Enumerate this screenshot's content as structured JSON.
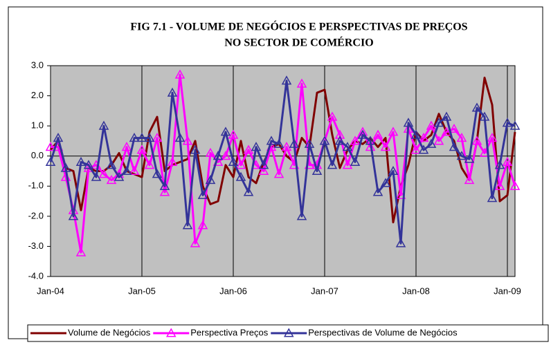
{
  "chart_data": {
    "type": "line",
    "title": [
      "FIG 7.1 - VOLUME DE NEGÓCIOS E PERSPECTIVAS DE PREÇOS",
      "NO SECTOR DE COMÉRCIO"
    ],
    "categories": [
      "Jan-04",
      null,
      null,
      null,
      null,
      null,
      null,
      null,
      null,
      null,
      null,
      null,
      "Jan-05",
      null,
      null,
      null,
      null,
      null,
      null,
      null,
      null,
      null,
      null,
      null,
      "Jan-06",
      null,
      null,
      null,
      null,
      null,
      null,
      null,
      null,
      null,
      null,
      null,
      "Jan-07",
      null,
      null,
      null,
      null,
      null,
      null,
      null,
      null,
      null,
      null,
      null,
      "Jan-08",
      null,
      null,
      null,
      null,
      null,
      null,
      null,
      null,
      null,
      null,
      null,
      "Jan-09",
      null
    ],
    "series": [
      {
        "name": "Volume de Negócios",
        "color": "#800000",
        "marker": "none",
        "values": [
          0.2,
          0.5,
          -0.4,
          -0.5,
          -1.8,
          -0.4,
          -0.5,
          -0.5,
          -0.3,
          0.1,
          -0.5,
          -0.6,
          -0.7,
          0.8,
          1.3,
          -0.5,
          -0.3,
          -0.2,
          -0.1,
          0.5,
          -1.0,
          -1.6,
          -1.5,
          -0.3,
          -0.7,
          0.5,
          -0.7,
          -0.9,
          -0.2,
          0.3,
          0.4,
          0.0,
          -0.2,
          0.6,
          0.3,
          2.1,
          2.2,
          0.7,
          -0.4,
          0.2,
          0.5,
          0.4,
          0.6,
          0.3,
          0.6,
          -2.2,
          -1.0,
          -0.3,
          0.8,
          0.5,
          0.7,
          1.4,
          0.8,
          0.5,
          -0.4,
          -0.8,
          0.5,
          2.6,
          1.7,
          -1.5,
          -1.3,
          0.8
        ]
      },
      {
        "name": "Perspectiva Preços",
        "color": "#ff00ff",
        "marker": "triangle",
        "values": [
          0.3,
          0.3,
          -0.7,
          -1.8,
          -3.2,
          -0.4,
          -0.3,
          -0.6,
          -0.8,
          -0.6,
          0.3,
          -0.5,
          0.2,
          -0.3,
          0.6,
          -1.2,
          -0.2,
          2.7,
          0.5,
          -2.9,
          -2.3,
          0.1,
          -0.2,
          0.0,
          0.7,
          -0.3,
          0.2,
          -0.3,
          -0.5,
          0.3,
          -0.6,
          0.3,
          -0.3,
          2.4,
          -0.3,
          -0.3,
          0.5,
          1.3,
          0.7,
          -0.3,
          0.5,
          0.8,
          0.3,
          0.7,
          0.3,
          0.8,
          -1.3,
          0.9,
          0.2,
          0.6,
          1.0,
          0.5,
          0.8,
          0.9,
          0.6,
          -0.8,
          0.5,
          0.1,
          0.6,
          -1.0,
          -0.2,
          -1.0
        ]
      },
      {
        "name": "Perspectivas de Volume de Negócios",
        "color": "#333399",
        "marker": "triangle",
        "values": [
          -0.2,
          0.6,
          -0.4,
          -2.0,
          -0.2,
          -0.3,
          -0.7,
          1.0,
          -0.3,
          -0.7,
          -0.5,
          0.6,
          0.6,
          0.6,
          -0.6,
          -1.0,
          2.1,
          0.6,
          -2.3,
          0.2,
          -1.3,
          -0.8,
          0.0,
          0.8,
          -0.2,
          -0.7,
          -1.2,
          0.3,
          -0.3,
          0.5,
          0.4,
          2.5,
          0.4,
          -2.0,
          0.4,
          -0.5,
          0.5,
          -0.3,
          0.5,
          0.3,
          -0.2,
          0.7,
          0.5,
          -1.2,
          -0.9,
          -0.5,
          -2.9,
          1.1,
          0.7,
          0.2,
          0.4,
          1.1,
          1.3,
          0.3,
          0.0,
          -0.1,
          1.6,
          1.3,
          -1.4,
          -0.3,
          1.1,
          1.0
        ]
      }
    ],
    "ylim": [
      -4,
      3
    ],
    "yticks": [
      {
        "value": 3,
        "label": "3.0"
      },
      {
        "value": 2,
        "label": "2.0"
      },
      {
        "value": 1,
        "label": "1.0"
      },
      {
        "value": 0,
        "label": "0.0"
      },
      {
        "value": -1,
        "label": "-1.0"
      },
      {
        "value": -2,
        "label": "-2.0"
      },
      {
        "value": -3,
        "label": "-3.0"
      },
      {
        "value": -4,
        "label": "-4.0"
      }
    ],
    "plot_background": "#c0c0c0",
    "legend": "bottom"
  }
}
